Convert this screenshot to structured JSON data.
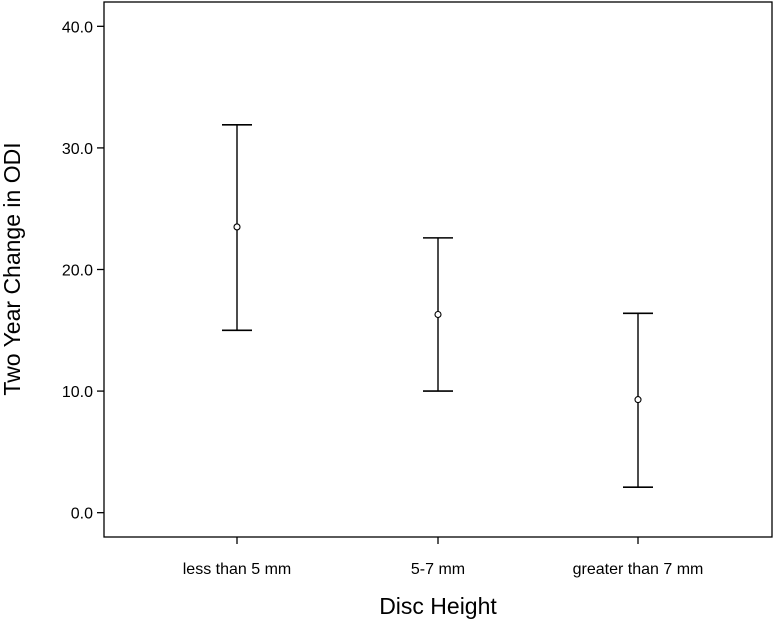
{
  "chart_data": {
    "type": "errorbar",
    "xlabel": "Disc Height",
    "ylabel": "Two Year Change in ODI",
    "ylim": [
      -2.0,
      42.0
    ],
    "yticks": [
      0.0,
      10.0,
      20.0,
      30.0,
      40.0
    ],
    "ytick_labels": [
      "0.0",
      "10.0",
      "20.0",
      "30.0",
      "40.0"
    ],
    "categories": [
      "less than 5 mm",
      "5-7 mm",
      "greater than 7 mm"
    ],
    "mean": [
      23.5,
      16.3,
      9.3
    ],
    "lower": [
      15.0,
      10.0,
      2.1
    ],
    "upper": [
      31.9,
      22.6,
      16.4
    ],
    "grid": false,
    "colors": {
      "line": "#000000",
      "background": "#ffffff"
    }
  }
}
